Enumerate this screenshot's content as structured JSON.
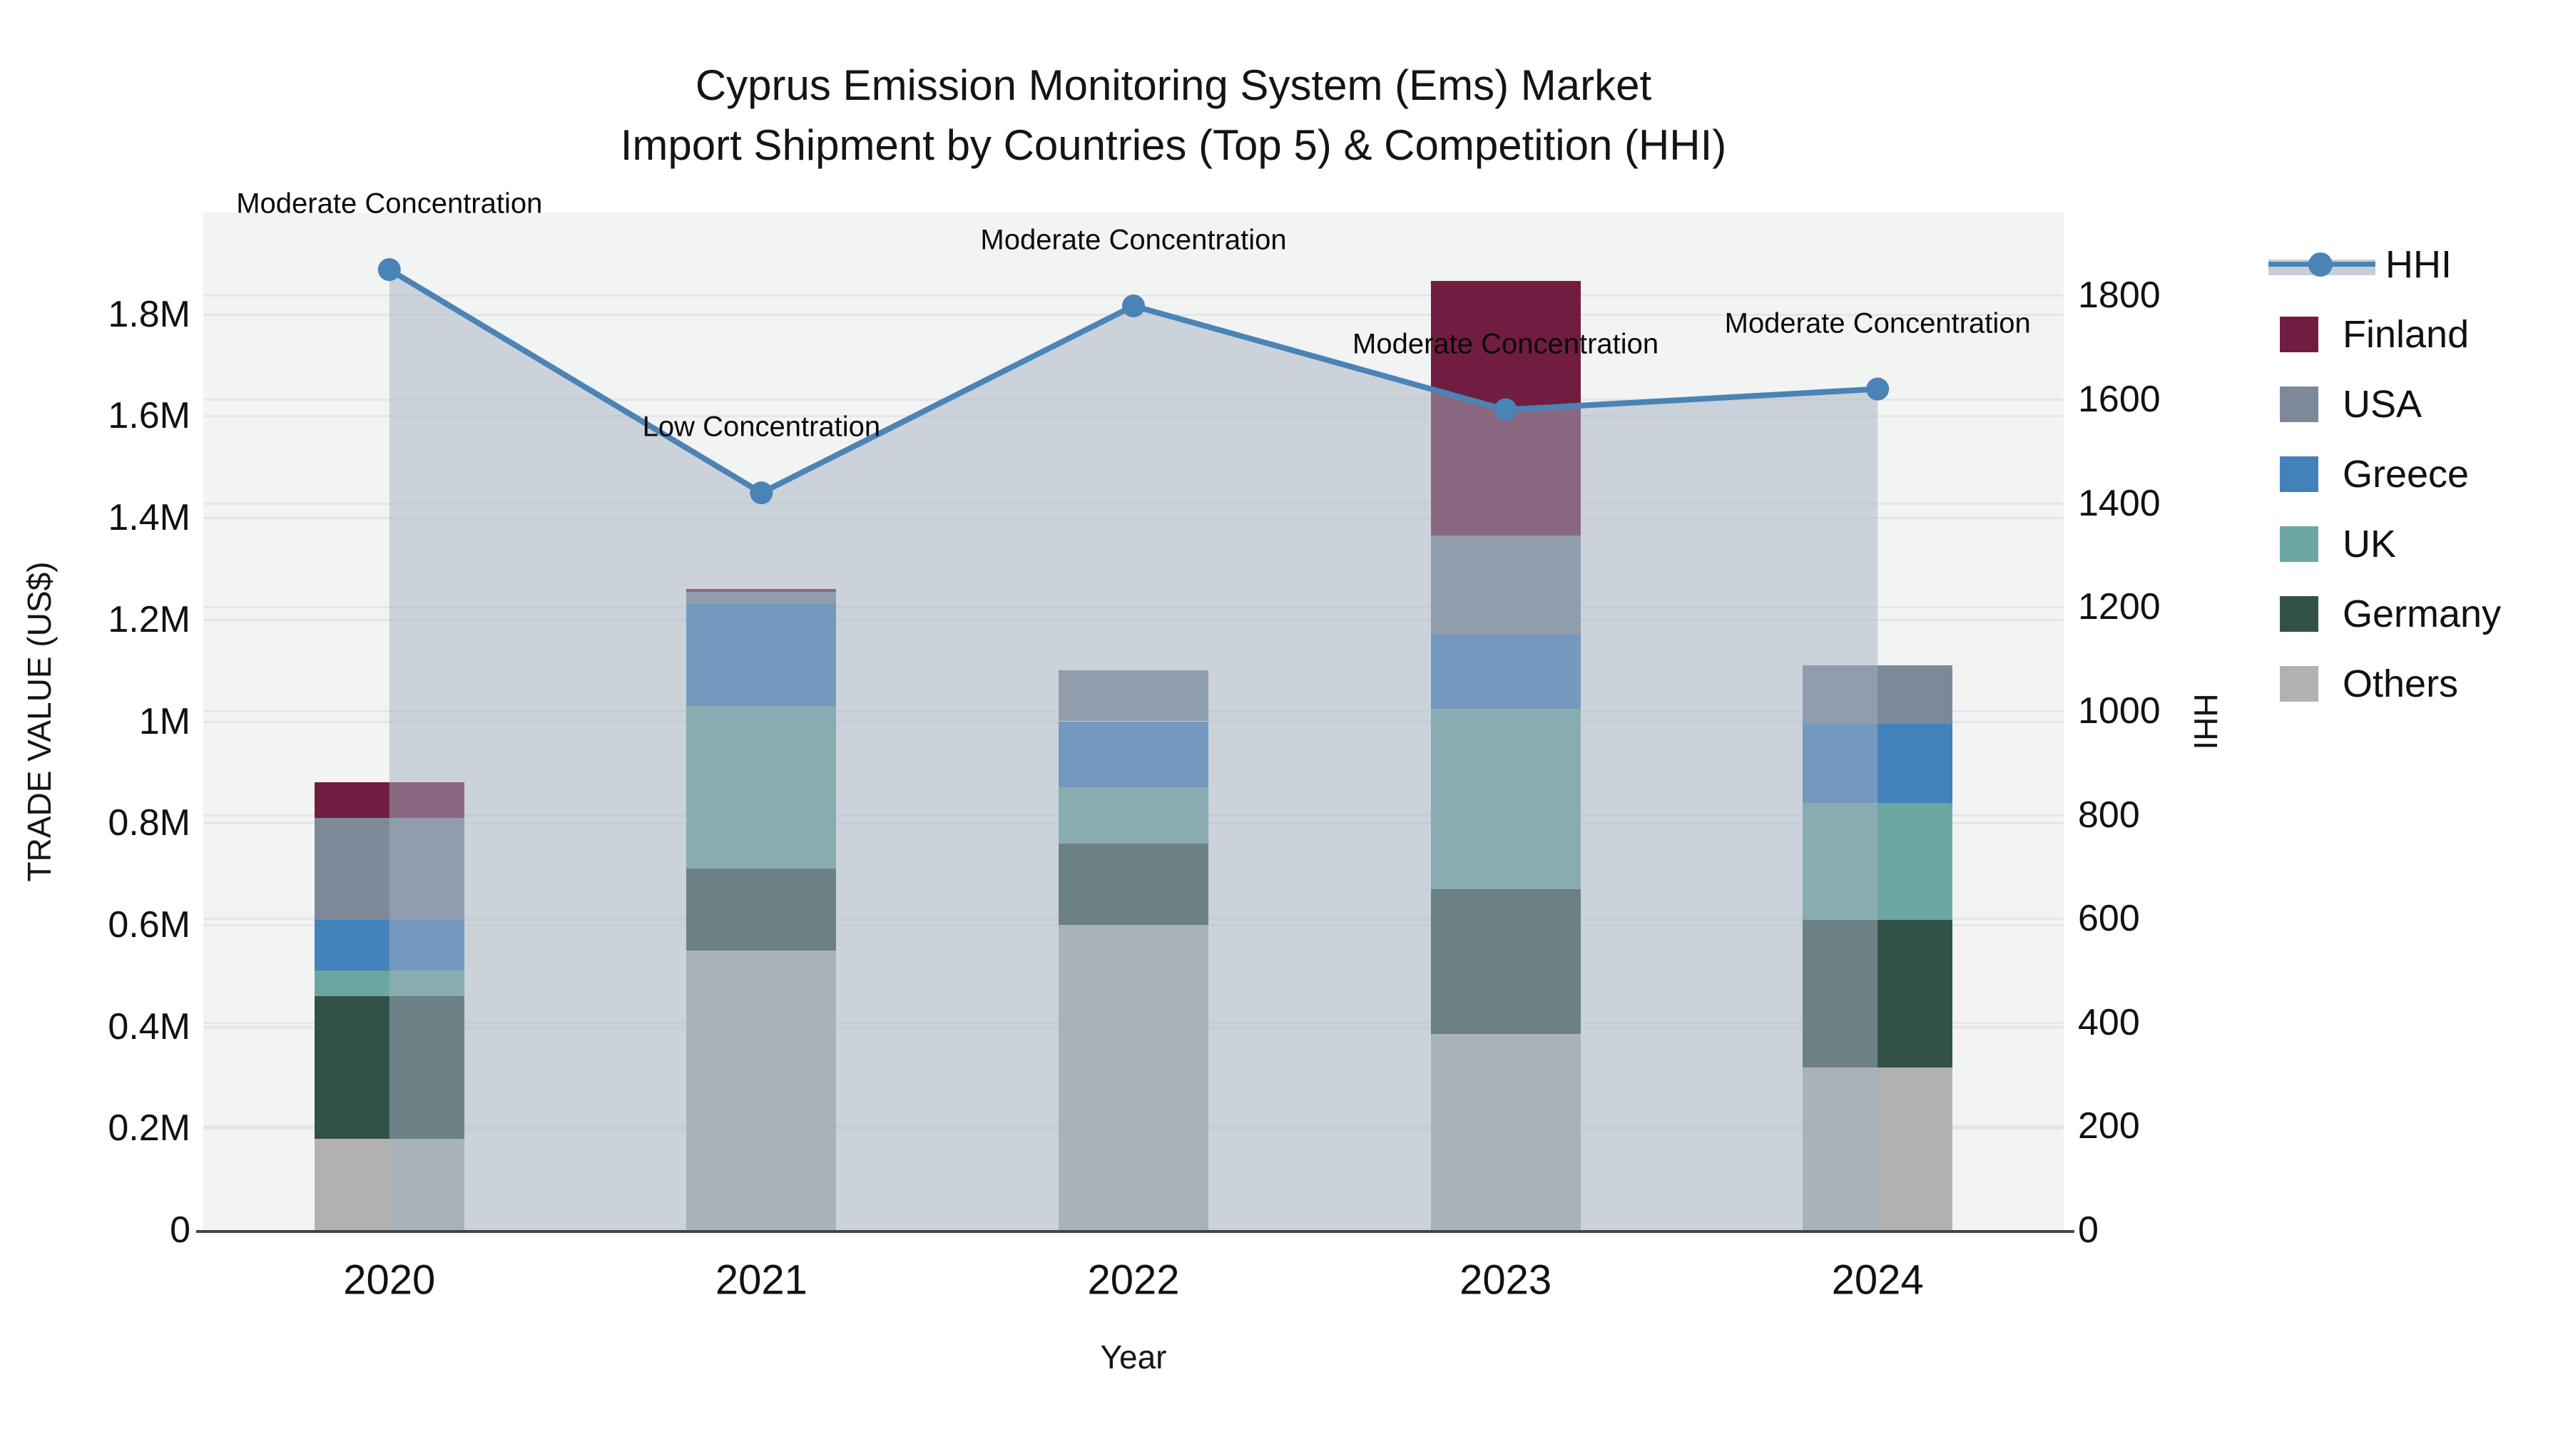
{
  "title": {
    "line1": "Cyprus Emission Monitoring System (Ems) Market",
    "line2": "Import Shipment by Countries (Top 5) & Competition (HHI)"
  },
  "axes": {
    "left": {
      "title": "TRADE VALUE (US$)",
      "tick_labels": [
        "0",
        "0.2M",
        "0.4M",
        "0.6M",
        "0.8M",
        "1M",
        "1.2M",
        "1.4M",
        "1.6M",
        "1.8M"
      ],
      "max_value": 2000000
    },
    "right": {
      "title": "HHI",
      "tick_labels": [
        "0",
        "200",
        "400",
        "600",
        "800",
        "1000",
        "1200",
        "1400",
        "1600",
        "1800"
      ],
      "max_value": 1960
    },
    "x": {
      "title": "Year"
    }
  },
  "legend": {
    "items": [
      {
        "label": "HHI",
        "color": "#4a84b6",
        "kind": "line"
      },
      {
        "label": "Finland",
        "color": "#701d41",
        "kind": "swatch"
      },
      {
        "label": "USA",
        "color": "#7d8999",
        "kind": "swatch"
      },
      {
        "label": "Greece",
        "color": "#4281ba",
        "kind": "swatch"
      },
      {
        "label": "UK",
        "color": "#6ca6a3",
        "kind": "swatch"
      },
      {
        "label": "Germany",
        "color": "#325149",
        "kind": "swatch"
      },
      {
        "label": "Others",
        "color": "#b1b2b0",
        "kind": "swatch"
      }
    ]
  },
  "chart_data": {
    "type": "bar",
    "subtype": "stacked-bars-with-line-area-overlay",
    "categories": [
      "2020",
      "2021",
      "2022",
      "2023",
      "2024"
    ],
    "series": [
      {
        "name": "Others",
        "color": "#b1b2b0",
        "values": [
          180000,
          550000,
          600000,
          385000,
          320000
        ]
      },
      {
        "name": "Germany",
        "color": "#325149",
        "values": [
          280000,
          160000,
          160000,
          285000,
          290000
        ]
      },
      {
        "name": "UK",
        "color": "#6ca6a3",
        "values": [
          50000,
          320000,
          110000,
          355000,
          230000
        ]
      },
      {
        "name": "Greece",
        "color": "#4281ba",
        "values": [
          100000,
          200000,
          130000,
          145000,
          155000
        ]
      },
      {
        "name": "USA",
        "color": "#7d8999",
        "values": [
          200000,
          25000,
          100000,
          195000,
          115000
        ]
      },
      {
        "name": "Finland",
        "color": "#701d41",
        "values": [
          70000,
          5000,
          0,
          500000,
          0
        ]
      }
    ],
    "bar_totals": [
      880000,
      1260000,
      1100000,
      1865000,
      1110000
    ],
    "line_series": {
      "name": "HHI",
      "color": "#4a84b6",
      "area_fill": "rgba(164,177,194,0.50)",
      "values": [
        1850,
        1420,
        1780,
        1580,
        1620
      ]
    },
    "annotations": [
      {
        "category": "2020",
        "text": "Moderate Concentration"
      },
      {
        "category": "2021",
        "text": "Low Concentration"
      },
      {
        "category": "2022",
        "text": "Moderate Concentration"
      },
      {
        "category": "2023",
        "text": "Moderate Concentration"
      },
      {
        "category": "2024",
        "text": "Moderate Concentration"
      }
    ],
    "title": "Cyprus Emission Monitoring System (Ems) Market Import Shipment by Countries (Top 5) & Competition (HHI)",
    "xlabel": "Year",
    "ylabel_left": "TRADE VALUE (US$)",
    "ylabel_right": "HHI",
    "ylim_left": [
      0,
      2000000
    ],
    "ylim_right": [
      0,
      1960
    ],
    "grid": true,
    "legend_position": "right"
  }
}
